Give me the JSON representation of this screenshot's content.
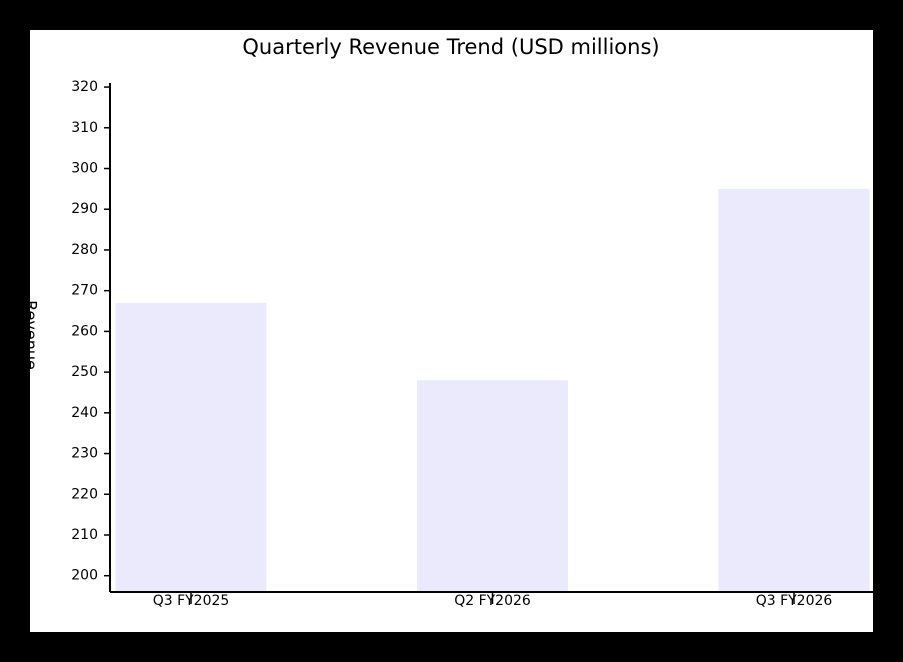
{
  "chart_data": {
    "type": "bar",
    "title": "Quarterly Revenue Trend (USD millions)",
    "y_label": "Revenue",
    "categories": [
      "Q3 FY2025",
      "Q2 FY2026",
      "Q3 FY2026"
    ],
    "values": [
      267,
      248,
      295
    ],
    "color": "#eaeafc",
    "ylim": [
      196,
      321
    ],
    "yticks": [
      200,
      210,
      220,
      230,
      240,
      250,
      260,
      270,
      280,
      290,
      300,
      310,
      320
    ],
    "grid": false
  }
}
